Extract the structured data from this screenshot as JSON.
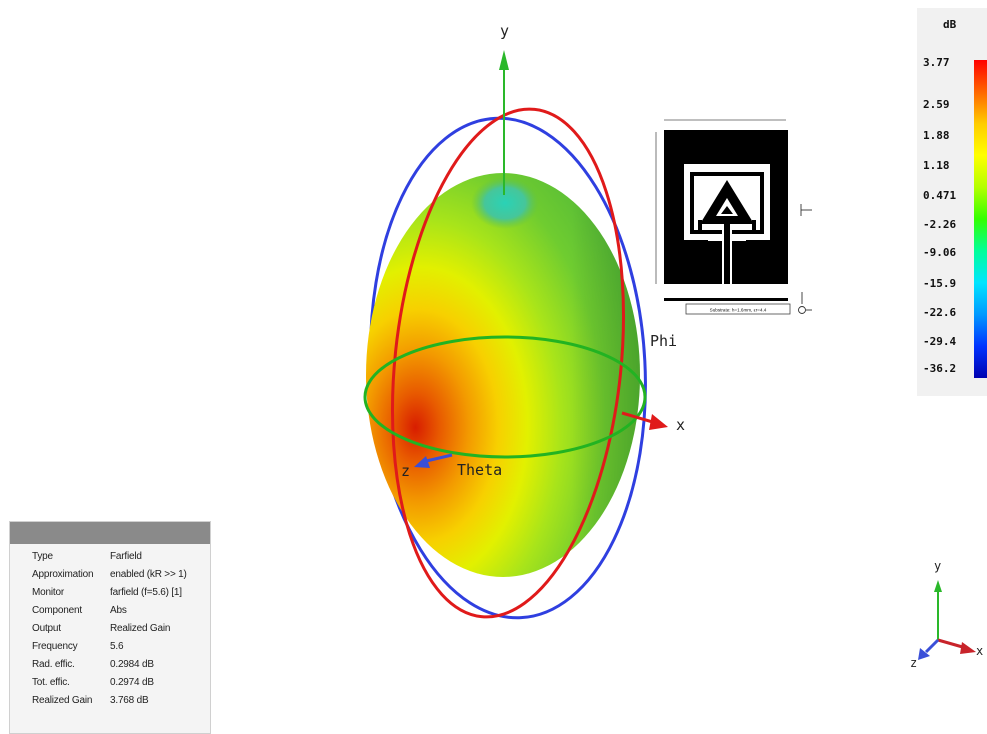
{
  "scene": {
    "axes": {
      "y": "y",
      "x": "x",
      "z": "z"
    },
    "angle_labels": {
      "phi": "Phi",
      "theta": "Theta"
    }
  },
  "legend": {
    "unit": "dB",
    "ticks": [
      "3.77",
      "2.59",
      "1.88",
      "1.18",
      "0.471",
      "-2.26",
      "-9.06",
      "-15.9",
      "-22.6",
      "-29.4",
      "-36.2"
    ],
    "colors": [
      "#ff0000",
      "#ff6600",
      "#ffcc00",
      "#ffff00",
      "#b4ff00",
      "#33ff00",
      "#00ff99",
      "#00e5ff",
      "#0099ff",
      "#0033ff",
      "#0000b0"
    ]
  },
  "info_panel": {
    "rows": [
      {
        "key": "Type",
        "value": "Farfield"
      },
      {
        "key": "Approximation",
        "value": "enabled (kR >> 1)"
      },
      {
        "key": "Monitor",
        "value": "farfield (f=5.6) [1]"
      },
      {
        "key": "Component",
        "value": "Abs"
      },
      {
        "key": "Output",
        "value": "Realized Gain"
      },
      {
        "key": "Frequency",
        "value": "5.6"
      },
      {
        "key": "Rad. effic.",
        "value": "0.2984 dB"
      },
      {
        "key": "Tot. effic.",
        "value": "0.2974 dB"
      },
      {
        "key": "Realized Gain",
        "value": "3.768 dB"
      }
    ]
  },
  "mini_axes": {
    "y": "y",
    "x": "x",
    "z": "z"
  },
  "inset": {
    "substrate_label": "Substrate: h=1.6mm, εr=4.4"
  }
}
